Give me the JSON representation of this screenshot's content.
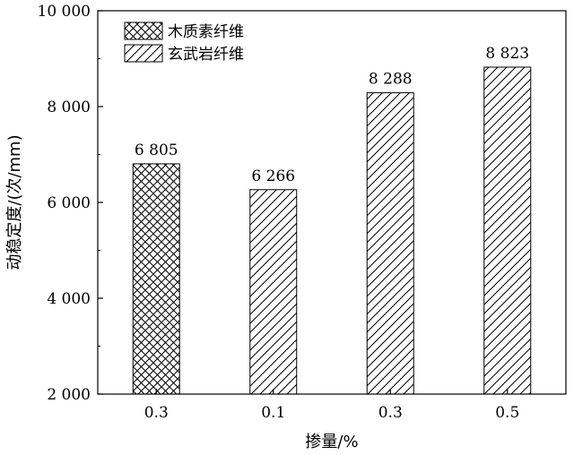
{
  "chart_data": {
    "type": "bar",
    "categories": [
      "0.3",
      "0.1",
      "0.3",
      "0.5"
    ],
    "values": [
      6805,
      6266,
      8288,
      8823
    ],
    "value_labels": [
      "6 805",
      "6 266",
      "8 288",
      "8 823"
    ],
    "series_of_bar": [
      0,
      1,
      1,
      1
    ],
    "series": [
      {
        "name": "木质素纤维",
        "pattern": "crosshatch"
      },
      {
        "name": "玄武岩纤维",
        "pattern": "diagonal"
      }
    ],
    "xlabel": "掺量/%",
    "ylabel": "动稳定度/(次/mm)",
    "ylim": [
      2000,
      10000
    ],
    "yticks": [
      2000,
      4000,
      6000,
      8000,
      10000
    ],
    "ytick_labels": [
      "2 000",
      "4 000",
      "6 000",
      "8 000",
      "10 000"
    ],
    "legend_position": "top-left",
    "grid": false
  }
}
